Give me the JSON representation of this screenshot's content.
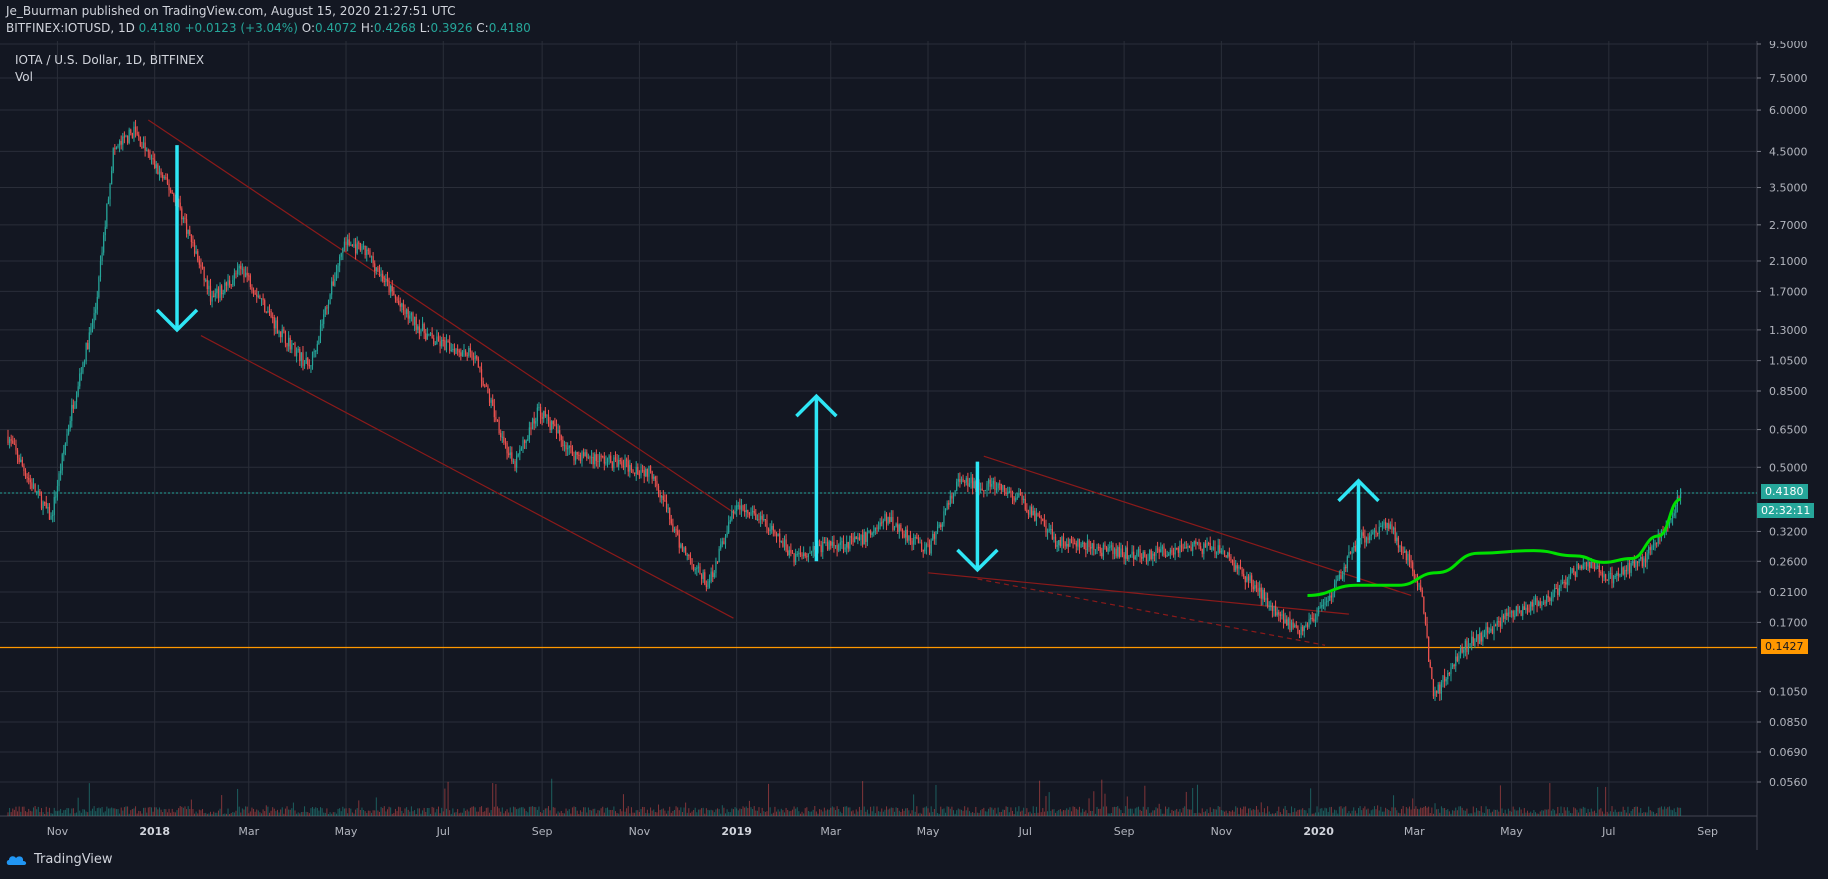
{
  "header": {
    "author": "Je_Buurman",
    "published_text": "published on TradingView.com, August 15, 2020 21:27:51 UTC",
    "symbol": "BITFINEX:IOTUSD, 1D",
    "last": "0.4180",
    "change": "+0.0123 (+3.04%)",
    "o_label": "O:",
    "o": "0.4072",
    "h_label": "H:",
    "h": "0.4268",
    "l_label": "L:",
    "l": "0.3926",
    "c_label": "C:",
    "c": "0.4180"
  },
  "legend": {
    "title": "IOTA / U.S. Dollar, 1D, BITFINEX",
    "vol": "Vol"
  },
  "footer": {
    "brand": "TradingView"
  },
  "price_tags": {
    "current": "0.4180",
    "countdown": "02:32:11",
    "support": "0.1427"
  },
  "colors": {
    "background": "#131722",
    "up": "#26a69a",
    "down": "#ef5350",
    "arrow": "#2ee6f5",
    "curve": "#00e000",
    "support": "#ff9800",
    "channel": "#8b1a1a"
  },
  "chart_data": {
    "type": "candlestick",
    "title": "IOTA / U.S. Dollar, 1D, BITFINEX",
    "y_scale": "log",
    "y_ticks": [
      "9.5000",
      "7.5000",
      "6.0000",
      "4.5000",
      "3.5000",
      "2.7000",
      "2.1000",
      "1.7000",
      "1.3000",
      "1.0500",
      "0.8500",
      "0.6500",
      "0.5000",
      "0.4180",
      "0.3200",
      "0.2600",
      "0.2100",
      "0.1700",
      "0.1427",
      "0.1050",
      "0.0850",
      "0.0690",
      "0.0560"
    ],
    "x_ticks": [
      "Nov",
      "2018",
      "Mar",
      "May",
      "Jul",
      "Sep",
      "Nov",
      "2019",
      "Mar",
      "May",
      "Jul",
      "Sep",
      "Nov",
      "2020",
      "Mar",
      "May",
      "Jul",
      "Sep"
    ],
    "x_range": [
      "2017-10-01",
      "2020-09-15"
    ],
    "price_path": [
      [
        "2017-10-01",
        0.62
      ],
      [
        "2017-10-15",
        0.45
      ],
      [
        "2017-10-28",
        0.35
      ],
      [
        "2017-11-10",
        0.75
      ],
      [
        "2017-11-25",
        1.5
      ],
      [
        "2017-12-06",
        4.5
      ],
      [
        "2017-12-19",
        5.2
      ],
      [
        "2018-01-02",
        4.0
      ],
      [
        "2018-01-15",
        3.2
      ],
      [
        "2018-02-06",
        1.6
      ],
      [
        "2018-02-25",
        2.0
      ],
      [
        "2018-03-20",
        1.3
      ],
      [
        "2018-04-08",
        1.0
      ],
      [
        "2018-04-30",
        2.4
      ],
      [
        "2018-05-15",
        2.2
      ],
      [
        "2018-06-05",
        1.5
      ],
      [
        "2018-06-25",
        1.2
      ],
      [
        "2018-07-20",
        1.1
      ],
      [
        "2018-08-14",
        0.5
      ],
      [
        "2018-08-30",
        0.75
      ],
      [
        "2018-09-20",
        0.55
      ],
      [
        "2018-10-15",
        0.52
      ],
      [
        "2018-11-10",
        0.48
      ],
      [
        "2018-11-25",
        0.3
      ],
      [
        "2018-12-14",
        0.22
      ],
      [
        "2018-12-31",
        0.38
      ],
      [
        "2019-01-15",
        0.35
      ],
      [
        "2019-02-06",
        0.27
      ],
      [
        "2019-02-25",
        0.29
      ],
      [
        "2019-03-20",
        0.3
      ],
      [
        "2019-04-05",
        0.35
      ],
      [
        "2019-05-01",
        0.28
      ],
      [
        "2019-05-20",
        0.45
      ],
      [
        "2019-06-10",
        0.44
      ],
      [
        "2019-06-28",
        0.4
      ],
      [
        "2019-07-20",
        0.3
      ],
      [
        "2019-08-20",
        0.28
      ],
      [
        "2019-09-15",
        0.27
      ],
      [
        "2019-10-10",
        0.29
      ],
      [
        "2019-11-01",
        0.28
      ],
      [
        "2019-11-25",
        0.21
      ],
      [
        "2019-12-18",
        0.16
      ],
      [
        "2020-01-06",
        0.19
      ],
      [
        "2020-01-25",
        0.3
      ],
      [
        "2020-02-14",
        0.34
      ],
      [
        "2020-03-05",
        0.22
      ],
      [
        "2020-03-13",
        0.1
      ],
      [
        "2020-03-30",
        0.14
      ],
      [
        "2020-04-30",
        0.18
      ],
      [
        "2020-05-25",
        0.2
      ],
      [
        "2020-06-15",
        0.26
      ],
      [
        "2020-07-01",
        0.23
      ],
      [
        "2020-07-22",
        0.26
      ],
      [
        "2020-08-05",
        0.32
      ],
      [
        "2020-08-15",
        0.418
      ]
    ],
    "horizontal_lines": [
      {
        "value": 0.418,
        "style": "dotted",
        "color": "#26a69a"
      },
      {
        "value": 0.1427,
        "style": "solid",
        "color": "#ff9800"
      }
    ],
    "annotations": [
      {
        "type": "arrow-down",
        "date": "2018-01-15",
        "from": 4.7,
        "to": 1.3
      },
      {
        "type": "arrow-up",
        "date": "2019-02-20",
        "from": 0.26,
        "to": 0.82
      },
      {
        "type": "arrow-down",
        "date": "2019-06-01",
        "from": 0.52,
        "to": 0.245
      },
      {
        "type": "arrow-up",
        "date": "2020-01-26",
        "from": 0.225,
        "to": 0.455
      }
    ],
    "trendlines": [
      {
        "from": [
          "2017-12-28",
          5.6
        ],
        "to": [
          "2019-01-01",
          0.36
        ]
      },
      {
        "from": [
          "2018-01-30",
          1.25
        ],
        "to": [
          "2018-12-30",
          0.175
        ]
      },
      {
        "from": [
          "2019-06-05",
          0.54
        ],
        "to": [
          "2020-02-28",
          0.205
        ]
      },
      {
        "from": [
          "2019-05-01",
          0.24
        ],
        "to": [
          "2020-01-20",
          0.18
        ]
      },
      {
        "from": [
          "2019-06-01",
          0.23
        ],
        "to": [
          "2020-01-05",
          0.145
        ],
        "dashed": true
      }
    ],
    "projection_curve": [
      [
        "2019-12-25",
        0.205
      ],
      [
        "2020-01-25",
        0.22
      ],
      [
        "2020-02-20",
        0.22
      ],
      [
        "2020-03-15",
        0.24
      ],
      [
        "2020-04-10",
        0.275
      ],
      [
        "2020-05-15",
        0.28
      ],
      [
        "2020-06-10",
        0.27
      ],
      [
        "2020-06-28",
        0.258
      ],
      [
        "2020-07-15",
        0.265
      ],
      [
        "2020-08-01",
        0.31
      ],
      [
        "2020-08-15",
        0.4
      ]
    ]
  }
}
